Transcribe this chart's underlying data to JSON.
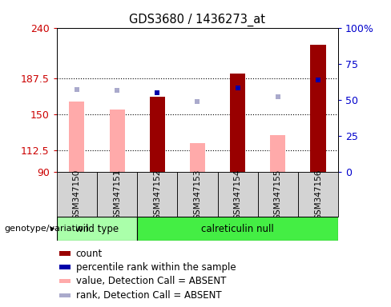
{
  "title": "GDS3680 / 1436273_at",
  "samples": [
    "GSM347150",
    "GSM347151",
    "GSM347152",
    "GSM347153",
    "GSM347154",
    "GSM347155",
    "GSM347156"
  ],
  "groups": [
    "wild type",
    "wild type",
    "calreticulin null",
    "calreticulin null",
    "calreticulin null",
    "calreticulin null",
    "calreticulin null"
  ],
  "count_values": [
    null,
    null,
    168,
    null,
    192,
    null,
    222
  ],
  "count_absent_values": [
    163,
    155,
    null,
    120,
    null,
    128,
    null
  ],
  "percentile_rank_values": [
    null,
    null,
    172,
    null,
    177,
    null,
    186
  ],
  "percentile_rank_absent_values": [
    176,
    175,
    null,
    163,
    null,
    168,
    null
  ],
  "ylim_left": [
    90,
    240
  ],
  "ylim_right": [
    0,
    100
  ],
  "yticks_left": [
    90,
    112.5,
    150,
    187.5,
    240
  ],
  "yticks_right": [
    0,
    25,
    50,
    75,
    100
  ],
  "left_color": "#cc0000",
  "right_color": "#0000cc",
  "count_bar_color": "#990000",
  "absent_bar_color": "#ffaaaa",
  "rank_bar_color": "#0000aa",
  "absent_rank_color": "#aaaacc",
  "wt_color": "#aaffaa",
  "cn_color": "#44ee44",
  "legend_labels": [
    "count",
    "percentile rank within the sample",
    "value, Detection Call = ABSENT",
    "rank, Detection Call = ABSENT"
  ],
  "legend_colors": [
    "#990000",
    "#0000aa",
    "#ffaaaa",
    "#aaaacc"
  ],
  "genotype_label": "genotype/variation"
}
